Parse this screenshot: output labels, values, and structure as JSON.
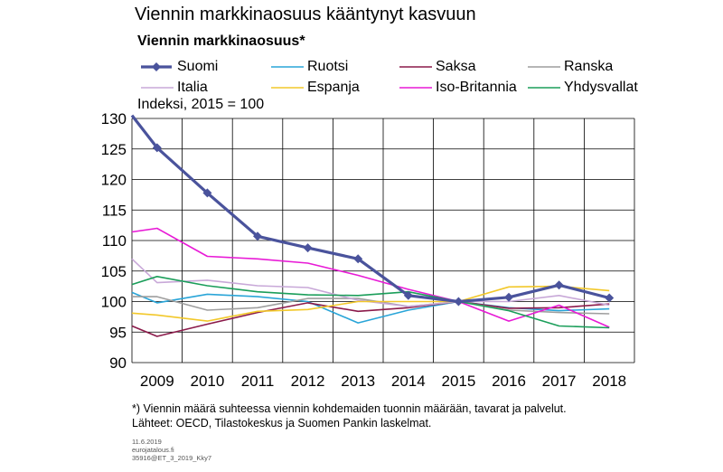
{
  "header": {
    "title": "Viennin markkinaosuus kääntynyt kasvuun"
  },
  "chart_data": {
    "type": "line",
    "title": "Viennin markkinaosuus*",
    "ylabel": "Indeksi, 2015 = 100",
    "xlabel": "",
    "x": [
      "2009",
      "2010",
      "2011",
      "2012",
      "2013",
      "2014",
      "2015",
      "2016",
      "2017",
      "2018"
    ],
    "ylim": [
      90,
      130
    ],
    "yticks": [
      90,
      95,
      100,
      105,
      110,
      115,
      120,
      125,
      130
    ],
    "grid": true,
    "legend_position": "top",
    "series": [
      {
        "name": "Suomi",
        "color": "#4a539c",
        "marker": "diamond",
        "values_note": "first point at 2008.5 start",
        "start": 130.5,
        "values": [
          125.2,
          117.8,
          110.7,
          108.8,
          107.0,
          101.0,
          100.0,
          100.7,
          102.7,
          100.6
        ]
      },
      {
        "name": "Ruotsi",
        "color": "#2aa5d8",
        "start": 101.5,
        "values": [
          99.8,
          101.2,
          100.8,
          100.0,
          96.5,
          98.6,
          100.0,
          99.0,
          98.5,
          98.8
        ]
      },
      {
        "name": "Saksa",
        "color": "#8b1a4a",
        "start": 96.0,
        "values": [
          94.3,
          96.3,
          98.2,
          99.8,
          98.4,
          99.0,
          100.0,
          98.9,
          99.0,
          99.6
        ]
      },
      {
        "name": "Ranska",
        "color": "#9e9e9e",
        "start": 100.8,
        "values": [
          100.8,
          98.6,
          99.0,
          100.5,
          100.5,
          99.2,
          100.0,
          98.6,
          98.2,
          98.0
        ]
      },
      {
        "name": "Italia",
        "color": "#c8a8d8",
        "start": 107.0,
        "values": [
          103.1,
          103.5,
          102.6,
          102.3,
          100.2,
          99.2,
          100.0,
          100.0,
          101.0,
          99.4
        ]
      },
      {
        "name": "Espanja",
        "color": "#f2c82a",
        "start": 98.1,
        "values": [
          97.8,
          96.8,
          98.4,
          98.7,
          100.0,
          100.0,
          100.0,
          102.4,
          102.5,
          101.8
        ]
      },
      {
        "name": "Iso-Britannia",
        "color": "#e81ad6",
        "start": 111.4,
        "values": [
          112.0,
          107.4,
          107.0,
          106.3,
          104.3,
          102.0,
          100.0,
          96.8,
          99.4,
          95.8
        ]
      },
      {
        "name": "Yhdysvallat",
        "color": "#1b9e5a",
        "start": 102.8,
        "values": [
          104.1,
          102.6,
          101.6,
          101.1,
          101.0,
          101.6,
          100.0,
          98.5,
          96.0,
          95.7
        ]
      }
    ]
  },
  "footnote": {
    "line1": "*) Viennin määrä suhteessa viennin kohdemaiden tuonnin määrään, tavarat ja palvelut.",
    "line2": "Lähteet: OECD, Tilastokeskus ja Suomen Pankin laskelmat."
  },
  "meta": {
    "date": "11.6.2019",
    "site": "eurojatalous.fi",
    "code": "35916@ET_3_2019_Kky7"
  }
}
